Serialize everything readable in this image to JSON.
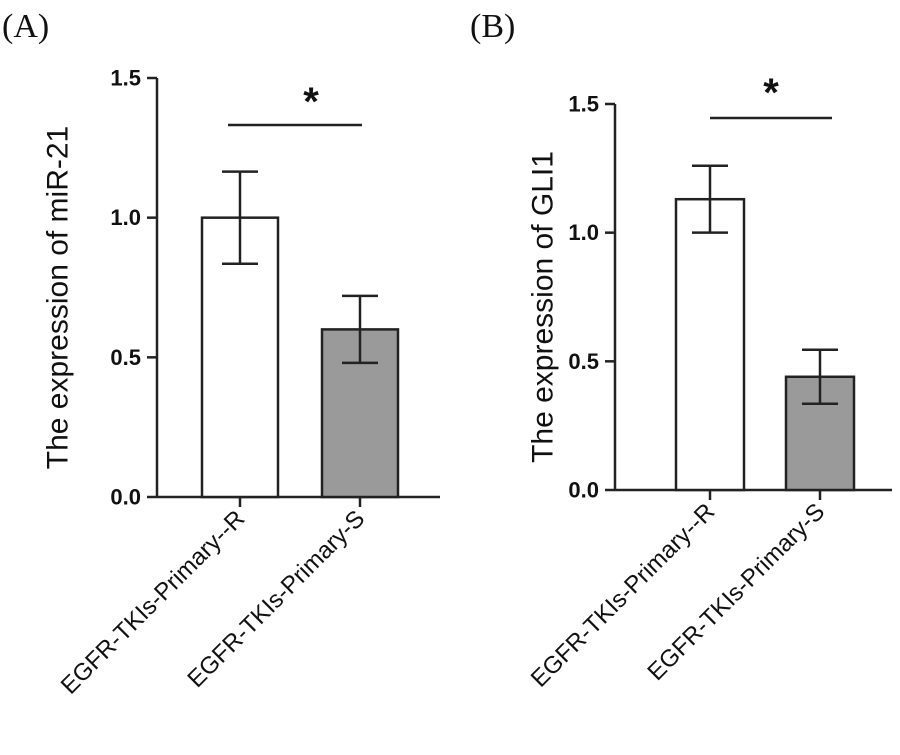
{
  "chart_data": [
    {
      "type": "bar",
      "panel_label": "(A)",
      "title": "",
      "xlabel": "",
      "ylabel": "The expression of miR-21",
      "ylim": [
        0,
        1.5
      ],
      "yticks": [
        "0.0",
        "0.5",
        "1.0",
        "1.5"
      ],
      "categories": [
        "EGFR-TKIs-Primary--R",
        "EGFR-TKIs-Primary-S"
      ],
      "values": [
        1.0,
        0.6
      ],
      "errors": [
        0.165,
        0.12
      ],
      "bar_colors": [
        "#ffffff",
        "#9a9a9a"
      ],
      "significance": "*"
    },
    {
      "type": "bar",
      "panel_label": "(B)",
      "title": "",
      "xlabel": "",
      "ylabel": "The expression of GLI1",
      "ylim": [
        0,
        1.5
      ],
      "yticks": [
        "0.0",
        "0.5",
        "1.0",
        "1.5"
      ],
      "categories": [
        "EGFR-TKIs-Primary--R",
        "EGFR-TKIs-Primary-S"
      ],
      "values": [
        1.13,
        0.44
      ],
      "errors": [
        0.13,
        0.105
      ],
      "bar_colors": [
        "#ffffff",
        "#9a9a9a"
      ],
      "significance": "*"
    }
  ]
}
